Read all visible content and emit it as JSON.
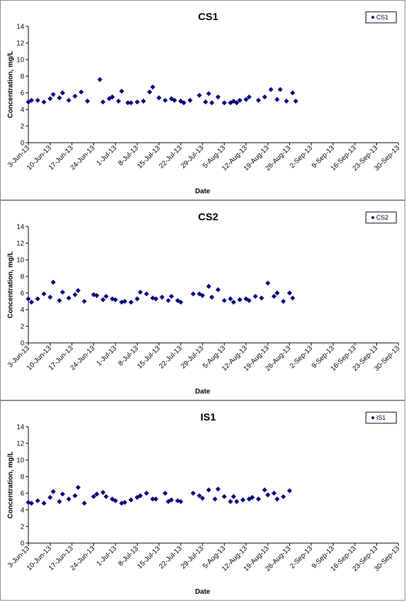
{
  "chart_data": [
    {
      "type": "scatter",
      "title": "CS1",
      "xlabel": "Date",
      "ylabel": "Concentration, mg/L",
      "ylim": [
        0,
        14
      ],
      "yticks": [
        0,
        2,
        4,
        6,
        8,
        10,
        12,
        14
      ],
      "xticks": [
        "3-Jun-13",
        "10-Jun-13",
        "17-Jun-13",
        "24-Jun-13",
        "1-Jul-13",
        "8-Jul-13",
        "15-Jul-13",
        "22-Jul-13",
        "29-Jul-13",
        "5-Aug-13",
        "12-Aug-13",
        "19-Aug-13",
        "26-Aug-13",
        "2-Sep-13",
        "9-Sep-13",
        "16-Sep-13",
        "23-Sep-13",
        "30-Sep-13"
      ],
      "legend_position": "top-right",
      "marker_color": "#00007f",
      "series": [
        {
          "name": "CS1",
          "points": [
            [
              "3-Jun-13",
              4.9
            ],
            [
              "4-Jun-13",
              5.1
            ],
            [
              "6-Jun-13",
              5.1
            ],
            [
              "8-Jun-13",
              4.9
            ],
            [
              "10-Jun-13",
              5.3
            ],
            [
              "11-Jun-13",
              5.8
            ],
            [
              "13-Jun-13",
              5.4
            ],
            [
              "14-Jun-13",
              6.0
            ],
            [
              "16-Jun-13",
              5.1
            ],
            [
              "18-Jun-13",
              5.6
            ],
            [
              "20-Jun-13",
              6.1
            ],
            [
              "22-Jun-13",
              5.0
            ],
            [
              "26-Jun-13",
              7.6
            ],
            [
              "27-Jun-13",
              4.9
            ],
            [
              "29-Jun-13",
              5.3
            ],
            [
              "30-Jun-13",
              5.5
            ],
            [
              "2-Jul-13",
              5.0
            ],
            [
              "3-Jul-13",
              6.2
            ],
            [
              "5-Jul-13",
              4.8
            ],
            [
              "6-Jul-13",
              4.8
            ],
            [
              "8-Jul-13",
              4.9
            ],
            [
              "10-Jul-13",
              5.0
            ],
            [
              "12-Jul-13",
              6.1
            ],
            [
              "13-Jul-13",
              6.7
            ],
            [
              "15-Jul-13",
              5.4
            ],
            [
              "17-Jul-13",
              5.1
            ],
            [
              "19-Jul-13",
              5.3
            ],
            [
              "20-Jul-13",
              5.1
            ],
            [
              "22-Jul-13",
              5.0
            ],
            [
              "23-Jul-13",
              4.8
            ],
            [
              "25-Jul-13",
              5.1
            ],
            [
              "28-Jul-13",
              5.7
            ],
            [
              "30-Jul-13",
              4.9
            ],
            [
              "31-Jul-13",
              5.9
            ],
            [
              "1-Aug-13",
              4.8
            ],
            [
              "3-Aug-13",
              5.5
            ],
            [
              "5-Aug-13",
              4.8
            ],
            [
              "7-Aug-13",
              4.8
            ],
            [
              "8-Aug-13",
              5.0
            ],
            [
              "9-Aug-13",
              4.8
            ],
            [
              "10-Aug-13",
              5.1
            ],
            [
              "12-Aug-13",
              5.2
            ],
            [
              "13-Aug-13",
              5.5
            ],
            [
              "16-Aug-13",
              5.1
            ],
            [
              "18-Aug-13",
              5.5
            ],
            [
              "20-Aug-13",
              6.4
            ],
            [
              "22-Aug-13",
              5.2
            ],
            [
              "23-Aug-13",
              6.4
            ],
            [
              "25-Aug-13",
              5.0
            ],
            [
              "27-Aug-13",
              6.0
            ],
            [
              "28-Aug-13",
              5.0
            ]
          ]
        }
      ]
    },
    {
      "type": "scatter",
      "title": "CS2",
      "xlabel": "Date",
      "ylabel": "Concentration, mg/L",
      "ylim": [
        0,
        14
      ],
      "yticks": [
        0,
        2,
        4,
        6,
        8,
        10,
        12,
        14
      ],
      "xticks": [
        "3-Jun-13",
        "10-Jun-13",
        "17-Jun-13",
        "24-Jun-13",
        "1-Jul-13",
        "8-Jul-13",
        "15-Jul-13",
        "22-Jul-13",
        "29-Jul-13",
        "5-Aug-13",
        "12-Aug-13",
        "19-Aug-13",
        "26-Aug-13",
        "2-Sep-13",
        "9-Sep-13",
        "16-Sep-13",
        "23-Sep-13",
        "30-Sep-13"
      ],
      "legend_position": "top-right",
      "marker_color": "#00007f",
      "series": [
        {
          "name": "CS2",
          "points": [
            [
              "3-Jun-13",
              5.3
            ],
            [
              "4-Jun-13",
              4.9
            ],
            [
              "6-Jun-13",
              5.3
            ],
            [
              "8-Jun-13",
              5.9
            ],
            [
              "10-Jun-13",
              5.5
            ],
            [
              "11-Jun-13",
              7.3
            ],
            [
              "13-Jun-13",
              5.1
            ],
            [
              "14-Jun-13",
              6.1
            ],
            [
              "16-Jun-13",
              5.4
            ],
            [
              "18-Jun-13",
              5.8
            ],
            [
              "19-Jun-13",
              6.3
            ],
            [
              "21-Jun-13",
              5.0
            ],
            [
              "24-Jun-13",
              5.8
            ],
            [
              "25-Jun-13",
              5.7
            ],
            [
              "27-Jun-13",
              5.2
            ],
            [
              "28-Jun-13",
              5.6
            ],
            [
              "30-Jun-13",
              5.3
            ],
            [
              "1-Jul-13",
              5.2
            ],
            [
              "3-Jul-13",
              4.9
            ],
            [
              "4-Jul-13",
              5.0
            ],
            [
              "6-Jul-13",
              4.9
            ],
            [
              "8-Jul-13",
              5.3
            ],
            [
              "9-Jul-13",
              6.1
            ],
            [
              "11-Jul-13",
              5.9
            ],
            [
              "13-Jul-13",
              5.4
            ],
            [
              "14-Jul-13",
              5.3
            ],
            [
              "16-Jul-13",
              5.5
            ],
            [
              "18-Jul-13",
              5.1
            ],
            [
              "19-Jul-13",
              5.6
            ],
            [
              "21-Jul-13",
              5.1
            ],
            [
              "22-Jul-13",
              4.9
            ],
            [
              "26-Jul-13",
              5.9
            ],
            [
              "28-Jul-13",
              5.9
            ],
            [
              "29-Jul-13",
              5.7
            ],
            [
              "31-Jul-13",
              6.8
            ],
            [
              "1-Aug-13",
              5.5
            ],
            [
              "3-Aug-13",
              6.4
            ],
            [
              "5-Aug-13",
              5.1
            ],
            [
              "7-Aug-13",
              5.3
            ],
            [
              "8-Aug-13",
              4.9
            ],
            [
              "10-Aug-13",
              5.2
            ],
            [
              "12-Aug-13",
              5.3
            ],
            [
              "13-Aug-13",
              5.1
            ],
            [
              "15-Aug-13",
              5.6
            ],
            [
              "17-Aug-13",
              5.4
            ],
            [
              "19-Aug-13",
              7.2
            ],
            [
              "21-Aug-13",
              5.6
            ],
            [
              "22-Aug-13",
              6.0
            ],
            [
              "24-Aug-13",
              5.0
            ],
            [
              "26-Aug-13",
              6.0
            ],
            [
              "27-Aug-13",
              5.4
            ]
          ]
        }
      ]
    },
    {
      "type": "scatter",
      "title": "IS1",
      "xlabel": "Date",
      "ylabel": "Concentration, mg/L",
      "ylim": [
        0,
        14
      ],
      "yticks": [
        0,
        2,
        4,
        6,
        8,
        10,
        12,
        14
      ],
      "xticks": [
        "3-Jun-13",
        "10-Jun-13",
        "17-Jun-13",
        "24-Jun-13",
        "1-Jul-13",
        "8-Jul-13",
        "15-Jul-13",
        "22-Jul-13",
        "29-Jul-13",
        "5-Aug-13",
        "12-Aug-13",
        "19-Aug-13",
        "26-Aug-13",
        "2-Sep-13",
        "9-Sep-13",
        "16-Sep-13",
        "23-Sep-13",
        "30-Sep-13"
      ],
      "legend_position": "top-right",
      "marker_color": "#00007f",
      "series": [
        {
          "name": "IS1",
          "points": [
            [
              "3-Jun-13",
              4.9
            ],
            [
              "4-Jun-13",
              4.8
            ],
            [
              "6-Jun-13",
              5.1
            ],
            [
              "8-Jun-13",
              4.8
            ],
            [
              "10-Jun-13",
              5.5
            ],
            [
              "11-Jun-13",
              6.2
            ],
            [
              "13-Jun-13",
              5.0
            ],
            [
              "14-Jun-13",
              5.9
            ],
            [
              "16-Jun-13",
              5.3
            ],
            [
              "18-Jun-13",
              5.7
            ],
            [
              "19-Jun-13",
              6.7
            ],
            [
              "21-Jun-13",
              4.8
            ],
            [
              "24-Jun-13",
              5.6
            ],
            [
              "25-Jun-13",
              5.9
            ],
            [
              "27-Jun-13",
              6.1
            ],
            [
              "28-Jun-13",
              5.6
            ],
            [
              "30-Jun-13",
              5.3
            ],
            [
              "1-Jul-13",
              5.1
            ],
            [
              "3-Jul-13",
              4.8
            ],
            [
              "4-Jul-13",
              4.9
            ],
            [
              "6-Jul-13",
              5.2
            ],
            [
              "8-Jul-13",
              5.5
            ],
            [
              "9-Jul-13",
              5.7
            ],
            [
              "11-Jul-13",
              6.0
            ],
            [
              "13-Jul-13",
              5.3
            ],
            [
              "14-Jul-13",
              5.3
            ],
            [
              "17-Jul-13",
              6.0
            ],
            [
              "18-Jul-13",
              5.0
            ],
            [
              "19-Jul-13",
              5.2
            ],
            [
              "21-Jul-13",
              5.1
            ],
            [
              "22-Jul-13",
              5.0
            ],
            [
              "26-Jul-13",
              6.0
            ],
            [
              "28-Jul-13",
              5.7
            ],
            [
              "29-Jul-13",
              5.4
            ],
            [
              "31-Jul-13",
              6.4
            ],
            [
              "2-Aug-13",
              5.3
            ],
            [
              "3-Aug-13",
              6.5
            ],
            [
              "5-Aug-13",
              5.6
            ],
            [
              "7-Aug-13",
              5.0
            ],
            [
              "8-Aug-13",
              5.6
            ],
            [
              "9-Aug-13",
              5.0
            ],
            [
              "11-Aug-13",
              5.2
            ],
            [
              "13-Aug-13",
              5.3
            ],
            [
              "14-Aug-13",
              5.5
            ],
            [
              "16-Aug-13",
              5.3
            ],
            [
              "18-Aug-13",
              6.4
            ],
            [
              "19-Aug-13",
              5.8
            ],
            [
              "21-Aug-13",
              6.0
            ],
            [
              "22-Aug-13",
              5.3
            ],
            [
              "24-Aug-13",
              5.6
            ],
            [
              "26-Aug-13",
              6.3
            ]
          ]
        }
      ]
    }
  ]
}
